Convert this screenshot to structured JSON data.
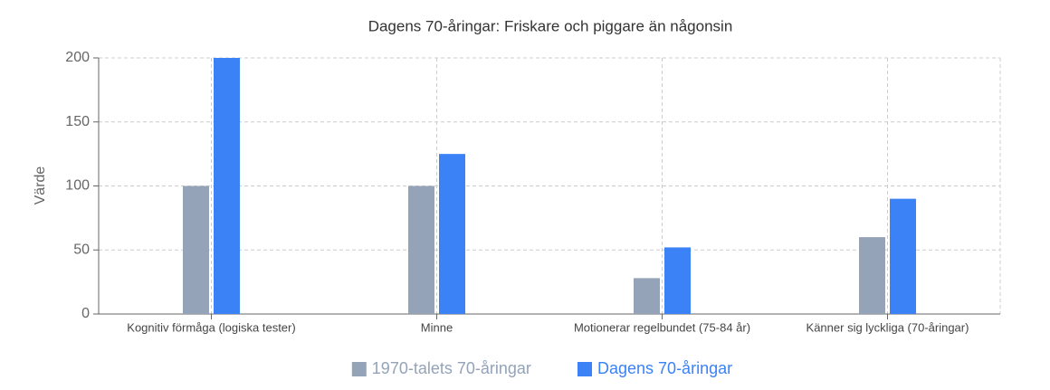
{
  "chart_data": {
    "type": "bar",
    "title": "Dagens 70-åringar: Friskare och piggare än någonsin",
    "y_label": "Värde",
    "categories": [
      "Kognitiv förmåga (logiska tester)",
      "Minne",
      "Motionerar regelbundet (75-84 år)",
      "Känner sig lyckliga (70-åringar)"
    ],
    "series": [
      {
        "name": "1970-talets 70-åringar",
        "color": "#94a3b8",
        "values": [
          100,
          100,
          28,
          60
        ]
      },
      {
        "name": "Dagens 70-åringar",
        "color": "#3b82f6",
        "values": [
          200,
          125,
          52,
          90
        ]
      }
    ],
    "ylim": [
      0,
      200
    ],
    "yticks": [
      0,
      50,
      100,
      150,
      200
    ],
    "grid": true,
    "legend": "bottom"
  }
}
